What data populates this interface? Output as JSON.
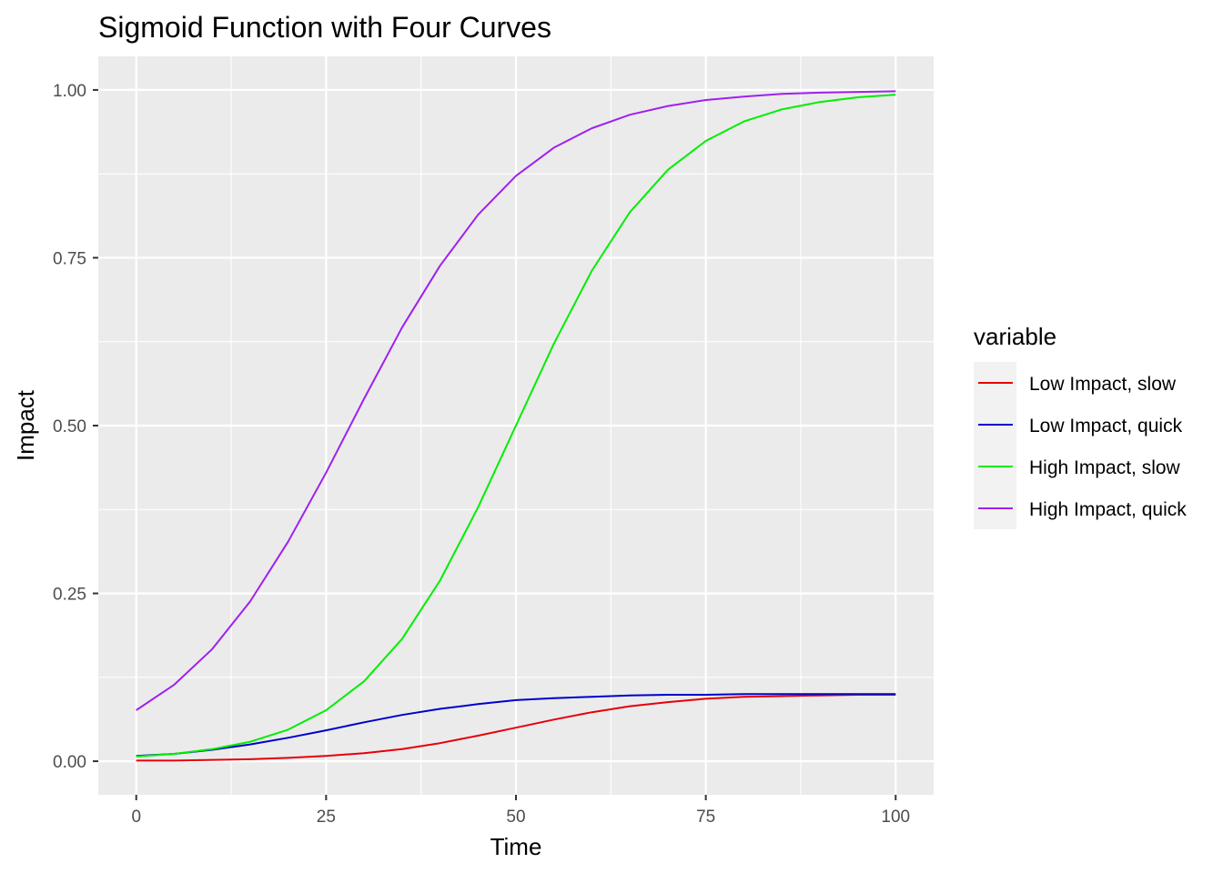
{
  "chart_data": {
    "type": "line",
    "title": "Sigmoid Function with Four Curves",
    "xlabel": "Time",
    "ylabel": "Impact",
    "xlim": [
      -5,
      105
    ],
    "ylim": [
      -0.05,
      1.05
    ],
    "x_ticks": [
      0,
      25,
      50,
      75,
      100
    ],
    "x_tick_labels": [
      "0",
      "25",
      "50",
      "75",
      "100"
    ],
    "y_ticks": [
      0,
      0.25,
      0.5,
      0.75,
      1.0
    ],
    "y_tick_labels": [
      "0.00",
      "0.25",
      "0.50",
      "0.75",
      "1.00"
    ],
    "grid": true,
    "legend": {
      "title": "variable",
      "position": "right"
    },
    "x": [
      0,
      5,
      10,
      15,
      20,
      25,
      30,
      35,
      40,
      45,
      50,
      55,
      60,
      65,
      70,
      75,
      80,
      85,
      90,
      95,
      100
    ],
    "series": [
      {
        "name": "Low Impact, slow",
        "color": "#e6000a",
        "values": [
          0.001,
          0.001,
          0.002,
          0.003,
          0.005,
          0.008,
          0.012,
          0.018,
          0.027,
          0.038,
          0.05,
          0.062,
          0.073,
          0.082,
          0.088,
          0.093,
          0.096,
          0.097,
          0.098,
          0.099,
          0.099
        ]
      },
      {
        "name": "Low Impact, quick",
        "color": "#0000cc",
        "values": [
          0.008,
          0.011,
          0.017,
          0.025,
          0.035,
          0.046,
          0.058,
          0.069,
          0.078,
          0.085,
          0.091,
          0.094,
          0.096,
          0.098,
          0.099,
          0.099,
          0.1,
          0.1,
          0.1,
          0.1,
          0.1
        ]
      },
      {
        "name": "High Impact, slow",
        "color": "#00ee00",
        "values": [
          0.007,
          0.011,
          0.018,
          0.029,
          0.047,
          0.076,
          0.119,
          0.182,
          0.269,
          0.378,
          0.5,
          0.622,
          0.731,
          0.818,
          0.881,
          0.924,
          0.953,
          0.971,
          0.982,
          0.989,
          0.993
        ]
      },
      {
        "name": "High Impact, quick",
        "color": "#a020f0",
        "values": [
          0.076,
          0.114,
          0.167,
          0.238,
          0.327,
          0.43,
          0.54,
          0.646,
          0.738,
          0.814,
          0.872,
          0.914,
          0.943,
          0.963,
          0.976,
          0.985,
          0.99,
          0.994,
          0.996,
          0.997,
          0.998
        ]
      }
    ]
  }
}
